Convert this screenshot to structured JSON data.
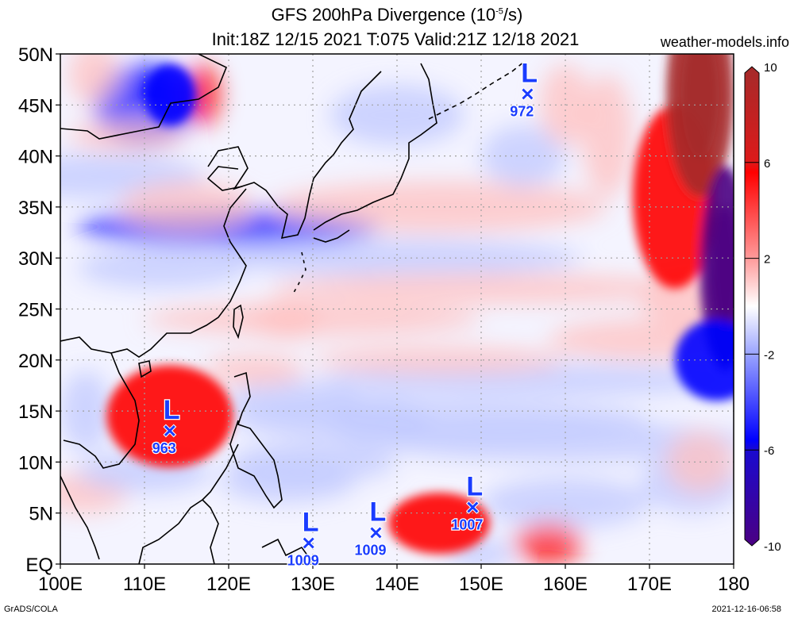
{
  "header": {
    "title_line1_prefix": "GFS 200hPa Divergence (10",
    "title_line1_exp": "-5",
    "title_line1_suffix": "/s)",
    "title_line2": "Init:18Z 12/15 2021 T:075 Valid:21Z 12/18 2021",
    "site": "weather-models.info"
  },
  "footer": {
    "left": "GrADS/COLA",
    "right": "2021-12-16-06:58"
  },
  "chart_data": {
    "type": "heatmap",
    "title": "GFS 200hPa Divergence (10^-5/s)",
    "subtitle": "Init:18Z 12/15 2021 T:075 Valid:21Z 12/18 2021",
    "variable": "200hPa Divergence",
    "units": "10^-5/s",
    "xlim": [
      100,
      180
    ],
    "ylim": [
      0,
      50
    ],
    "x_ticks": [
      100,
      110,
      120,
      130,
      140,
      150,
      160,
      170,
      180
    ],
    "x_tick_labels": [
      "100E",
      "110E",
      "120E",
      "130E",
      "140E",
      "150E",
      "160E",
      "170E",
      "180"
    ],
    "y_ticks": [
      0,
      5,
      10,
      15,
      20,
      25,
      30,
      35,
      40,
      45,
      50
    ],
    "y_tick_labels": [
      "EQ",
      "5N",
      "10N",
      "15N",
      "20N",
      "25N",
      "30N",
      "35N",
      "40N",
      "45N",
      "50N"
    ],
    "grid": true,
    "colorbar": {
      "min": -10,
      "max": 10,
      "ticks": [
        10,
        6,
        2,
        -2,
        -6,
        -10
      ],
      "tick_labels": [
        "10",
        "6",
        "2",
        "-2",
        "-6",
        "-10"
      ],
      "placement": "right",
      "colors": {
        "pos_max": "#a52a2a",
        "pos_strong": "#ff0000",
        "pos_weak": "#ffc0c0",
        "neutral": "#ffffff",
        "neg_weak": "#c0c8ff",
        "neg_strong": "#0000ff",
        "neg_max": "#4b0082"
      }
    },
    "features": [
      {
        "name": "divergence-max-scs",
        "lon": 113,
        "lat": 14.5,
        "value": 6
      },
      {
        "name": "divergence-max-nw-pacific-east",
        "lon": 173,
        "lat": 36,
        "value": 7
      },
      {
        "name": "divergence-max-far-ne",
        "lon": 176,
        "lat": 46,
        "value": 9
      },
      {
        "name": "convergence-min-east",
        "lon": 179,
        "lat": 29,
        "value": -9
      },
      {
        "name": "convergence-min-east-2",
        "lon": 178,
        "lat": 20,
        "value": -6
      },
      {
        "name": "divergence-max-equatorial",
        "lon": 145,
        "lat": 4,
        "value": 5
      },
      {
        "name": "convergence-min-north",
        "lon": 113,
        "lat": 46,
        "value": -6
      }
    ],
    "lows": [
      {
        "label": "L",
        "pressure": "1007",
        "lon": 149,
        "lat": 5.5
      },
      {
        "label": "L",
        "pressure": "1009",
        "lon": 137.5,
        "lat": 3
      },
      {
        "label": "L",
        "pressure": "1009",
        "lon": 129.5,
        "lat": 2
      },
      {
        "label": "L",
        "pressure": "963",
        "lon": 113,
        "lat": 13
      },
      {
        "label": "L",
        "pressure": "972",
        "lon": 155.5,
        "lat": 46
      }
    ]
  }
}
